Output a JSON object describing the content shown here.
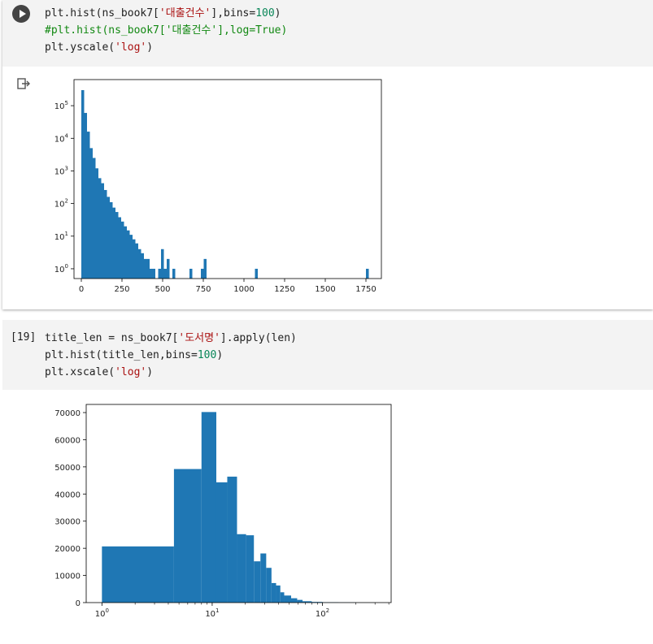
{
  "cell1": {
    "code_lines": [
      [
        "plt.hist(ns_book7[",
        "'대출건수'",
        "],bins=",
        "100",
        ")"
      ],
      [
        "#plt.hist(ns_book7['대출건수'],log=True)"
      ],
      [
        "plt.yscale(",
        "'log'",
        ")"
      ]
    ]
  },
  "cell2": {
    "exec_count": "[19]",
    "code_lines": [
      [
        "title_len = ns_book7[",
        "'도서명'",
        "].apply(len)"
      ],
      [
        "plt.hist(title_len,bins=",
        "100",
        ")"
      ],
      [
        "plt.xscale(",
        "'log'",
        ")"
      ]
    ]
  },
  "chart_data": [
    {
      "type": "bar",
      "yscale": "log",
      "xlim": [
        -45,
        1845
      ],
      "ylim_exp": [
        -0.3,
        5.8
      ],
      "x_ticks": [
        "0",
        "250",
        "500",
        "750",
        "1000",
        "1250",
        "1500",
        "1750"
      ],
      "x_tick_values": [
        0,
        250,
        500,
        750,
        1000,
        1250,
        1500,
        1750
      ],
      "y_tick_base": "10",
      "y_tick_exponents": [
        "0",
        "1",
        "2",
        "3",
        "4",
        "5"
      ],
      "bin_width": 17.5,
      "bins": [
        [
          0,
          300000
        ],
        [
          17.5,
          60000
        ],
        [
          35,
          16000
        ],
        [
          52.5,
          5000
        ],
        [
          70,
          2500
        ],
        [
          87.5,
          1200
        ],
        [
          105,
          600
        ],
        [
          122.5,
          420
        ],
        [
          140,
          260
        ],
        [
          157.5,
          160
        ],
        [
          175,
          110
        ],
        [
          192.5,
          75
        ],
        [
          210,
          55
        ],
        [
          227.5,
          38
        ],
        [
          245,
          28
        ],
        [
          262.5,
          20
        ],
        [
          280,
          15
        ],
        [
          297.5,
          11
        ],
        [
          315,
          8
        ],
        [
          332.5,
          6
        ],
        [
          350,
          4
        ],
        [
          367.5,
          3
        ],
        [
          385,
          2
        ],
        [
          402.5,
          2
        ],
        [
          420,
          1
        ],
        [
          437.5,
          1
        ],
        [
          472.5,
          1
        ],
        [
          490,
          4
        ],
        [
          507.5,
          1
        ],
        [
          525,
          2
        ],
        [
          560,
          1
        ],
        [
          665,
          1
        ],
        [
          735,
          1
        ],
        [
          752.5,
          2
        ],
        [
          1067.5,
          1
        ],
        [
          1750,
          1
        ]
      ]
    },
    {
      "type": "bar",
      "xscale": "log",
      "ylim": [
        0,
        73000
      ],
      "y_ticks": [
        "0",
        "10000",
        "20000",
        "30000",
        "40000",
        "50000",
        "60000",
        "70000"
      ],
      "y_tick_values": [
        0,
        10000,
        20000,
        30000,
        40000,
        50000,
        60000,
        70000
      ],
      "x_tick_base": "10",
      "x_tick_exponents": [
        "0",
        "1",
        "2"
      ],
      "x_tick_values": [
        1,
        10,
        100
      ],
      "bins": [
        [
          1,
          4.5,
          20700
        ],
        [
          4.5,
          8,
          49200
        ],
        [
          8,
          10.9,
          70200
        ],
        [
          10.9,
          13.7,
          44300
        ],
        [
          13.7,
          16.8,
          46400
        ],
        [
          16.8,
          20.3,
          25200
        ],
        [
          20.3,
          23.9,
          24800
        ],
        [
          23.9,
          27.4,
          15200
        ],
        [
          27.4,
          30.9,
          18100
        ],
        [
          30.9,
          34.5,
          12800
        ],
        [
          34.5,
          38,
          7200
        ],
        [
          38,
          41.5,
          6300
        ],
        [
          41.5,
          45,
          3800
        ],
        [
          45,
          52,
          2600
        ],
        [
          52,
          59,
          1600
        ],
        [
          59,
          66,
          1000
        ],
        [
          66,
          80,
          500
        ],
        [
          80,
          100,
          250
        ],
        [
          100,
          140,
          120
        ],
        [
          140,
          200,
          60
        ],
        [
          200,
          300,
          20
        ]
      ]
    }
  ]
}
